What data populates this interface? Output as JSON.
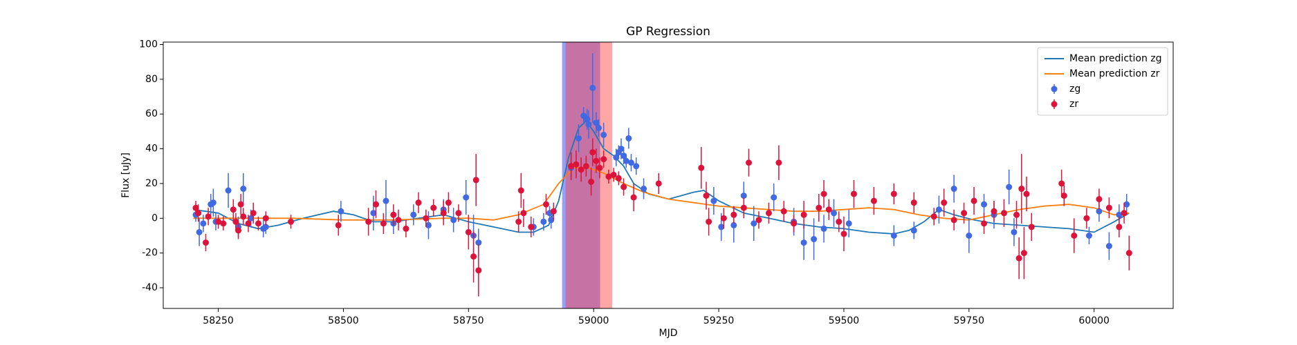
{
  "chart_data": {
    "type": "errorbar",
    "title": "GP Regression",
    "x_label": "MJD",
    "y_label": "Flux [uJy]",
    "xlim": [
      58140,
      60158
    ],
    "ylim": [
      -51.9,
      101.4
    ],
    "xticks": [
      58250,
      58500,
      58750,
      59000,
      59250,
      59500,
      59750,
      60000
    ],
    "yticks": [
      -40,
      -20,
      0,
      20,
      40,
      60,
      80,
      100
    ],
    "legend": "upper right",
    "spans": [
      {
        "x0": 58937,
        "x1": 59013,
        "color": "#3f51f5",
        "alpha": 0.55
      },
      {
        "x0": 58944,
        "x1": 59037,
        "color": "#ff3b3b",
        "alpha": 0.45
      }
    ],
    "series": [
      {
        "name": "Mean prediction zg",
        "type": "line",
        "color": "#1f77b4",
        "x": [
          58200,
          58250,
          58290,
          58330,
          58370,
          58420,
          58480,
          58520,
          58560,
          58600,
          58650,
          58700,
          58750,
          58800,
          58850,
          58880,
          58910,
          58930,
          58950,
          58970,
          58985,
          59000,
          59020,
          59040,
          59060,
          59080,
          59110,
          59150,
          59200,
          59220,
          59250,
          59300,
          59350,
          59400,
          59450,
          59500,
          59550,
          59600,
          59630,
          59660,
          59690,
          59720,
          59760,
          59800,
          59850,
          59900,
          59950,
          60000,
          60040,
          60070
        ],
        "values": [
          5,
          3,
          -3,
          -6,
          -4,
          0,
          4,
          2,
          -2,
          -2,
          0,
          2,
          -2,
          -5,
          -8,
          -8,
          -4,
          10,
          35,
          52,
          56,
          50,
          40,
          36,
          30,
          20,
          14,
          11,
          15,
          16,
          10,
          3,
          0,
          -3,
          -5,
          -6,
          -8,
          -9,
          -7,
          -2,
          5,
          2,
          -1,
          -3,
          -4,
          -5,
          -6,
          -8,
          -2,
          3
        ]
      },
      {
        "name": "Mean prediction zr",
        "type": "line",
        "color": "#ff7f0e",
        "x": [
          58200,
          58300,
          58400,
          58500,
          58600,
          58700,
          58750,
          58800,
          58850,
          58900,
          58930,
          58960,
          58990,
          59020,
          59060,
          59100,
          59150,
          59200,
          59250,
          59300,
          59350,
          59400,
          59450,
          59500,
          59550,
          59600,
          59650,
          59700,
          59750,
          59800,
          59850,
          59900,
          59950,
          60000,
          60040,
          60070
        ],
        "values": [
          0,
          0,
          0,
          -1,
          -1,
          0,
          0,
          -1,
          2,
          8,
          20,
          29,
          29,
          26,
          20,
          15,
          11,
          9,
          7,
          6,
          5,
          4,
          4,
          5,
          6,
          5,
          2,
          0,
          -1,
          2,
          5,
          7,
          8,
          6,
          2,
          3
        ]
      },
      {
        "name": "zg",
        "type": "errorbar",
        "color": "#4169e1",
        "x": [
          58205,
          58212,
          58220,
          58235,
          58240,
          58245,
          58270,
          58290,
          58300,
          58315,
          58340,
          58345,
          58495,
          58560,
          58585,
          58600,
          58640,
          58670,
          58700,
          58720,
          58745,
          58760,
          58770,
          58880,
          58900,
          58912,
          58915,
          58955,
          58970,
          58980,
          58987,
          58990,
          58998,
          59005,
          59010,
          59020,
          59045,
          59050,
          59055,
          59060,
          59065,
          59070,
          59075,
          59085,
          59100,
          59240,
          59255,
          59280,
          59300,
          59320,
          59360,
          59400,
          59420,
          59440,
          59460,
          59480,
          59510,
          59600,
          59640,
          59690,
          59720,
          59750,
          59780,
          59800,
          59830,
          59840,
          59990,
          60010,
          60030,
          60050,
          60065
        ],
        "values": [
          2,
          -8,
          -3,
          8,
          9,
          -2,
          16,
          -5,
          17,
          0,
          -6,
          -5,
          4,
          3,
          10,
          -3,
          2,
          -4,
          5,
          -1,
          12,
          -10,
          -14,
          -5,
          -2,
          3,
          -1,
          29,
          46,
          59,
          57,
          54,
          75,
          55,
          52,
          48,
          35,
          38,
          40,
          36,
          33,
          46,
          32,
          30,
          17,
          10,
          -5,
          -4,
          13,
          -3,
          12,
          -2,
          -14,
          -12,
          -6,
          3,
          -3,
          -10,
          -7,
          5,
          17,
          -10,
          8,
          2,
          18,
          -8,
          -10,
          4,
          -16,
          2,
          8
        ],
        "errors": [
          4,
          8,
          5,
          6,
          8,
          5,
          10,
          6,
          9,
          5,
          5,
          4,
          6,
          10,
          12,
          6,
          6,
          8,
          6,
          7,
          10,
          12,
          8,
          5,
          5,
          4,
          5,
          7,
          8,
          5,
          6,
          8,
          20,
          6,
          5,
          7,
          5,
          4,
          6,
          5,
          4,
          6,
          5,
          5,
          6,
          8,
          8,
          10,
          8,
          10,
          8,
          8,
          10,
          12,
          8,
          8,
          8,
          6,
          5,
          8,
          8,
          10,
          6,
          8,
          10,
          8,
          5,
          6,
          8,
          6,
          6
        ]
      },
      {
        "name": "zr",
        "type": "errorbar",
        "color": "#dc143c",
        "x": [
          58205,
          58210,
          58225,
          58230,
          58250,
          58260,
          58280,
          58285,
          58290,
          58295,
          58300,
          58310,
          58320,
          58330,
          58345,
          58395,
          58490,
          58550,
          58565,
          58580,
          58600,
          58610,
          58625,
          58650,
          58665,
          58680,
          58700,
          58710,
          58730,
          58750,
          58760,
          58765,
          58770,
          58850,
          58855,
          58860,
          58875,
          58905,
          58920,
          58955,
          58965,
          58975,
          58985,
          58995,
          58998,
          59005,
          59012,
          59020,
          59030,
          59040,
          59050,
          59060,
          59080,
          59130,
          59215,
          59225,
          59230,
          59260,
          59280,
          59300,
          59310,
          59330,
          59350,
          59370,
          59380,
          59400,
          59420,
          59450,
          59460,
          59470,
          59490,
          59500,
          59520,
          59560,
          59600,
          59640,
          59680,
          59700,
          59720,
          59740,
          59760,
          59780,
          59800,
          59820,
          59845,
          59850,
          59855,
          59860,
          59865,
          59875,
          59935,
          59940,
          59960,
          59985,
          60010,
          60030,
          60050,
          60060,
          60070
        ],
        "values": [
          6,
          3,
          -14,
          1,
          -2,
          -3,
          5,
          -2,
          -7,
          8,
          1,
          -3,
          3,
          -3,
          0,
          -2,
          -4,
          -2,
          8,
          -3,
          2,
          -1,
          -6,
          9,
          0,
          6,
          3,
          9,
          3,
          -8,
          -22,
          22,
          -30,
          -2,
          16,
          3,
          -5,
          8,
          4,
          30,
          31,
          28,
          30,
          21,
          38,
          33,
          29,
          34,
          24,
          25,
          23,
          18,
          12,
          20,
          29,
          13,
          -2,
          0,
          2,
          6,
          32,
          -1,
          3,
          32,
          4,
          -3,
          2,
          6,
          14,
          5,
          -2,
          -9,
          14,
          10,
          14,
          9,
          1,
          9,
          -1,
          3,
          10,
          -3,
          4,
          3,
          2,
          -23,
          17,
          -20,
          14,
          -5,
          20,
          13,
          -10,
          0,
          11,
          6,
          -5,
          3,
          -20
        ],
        "errors": [
          4,
          5,
          5,
          5,
          4,
          4,
          6,
          5,
          5,
          6,
          5,
          5,
          6,
          4,
          4,
          4,
          6,
          8,
          8,
          6,
          6,
          6,
          5,
          6,
          5,
          5,
          7,
          6,
          5,
          10,
          15,
          15,
          15,
          6,
          10,
          8,
          6,
          6,
          5,
          8,
          8,
          7,
          6,
          8,
          8,
          7,
          6,
          5,
          4,
          4,
          4,
          5,
          8,
          6,
          12,
          8,
          8,
          6,
          5,
          6,
          8,
          5,
          6,
          10,
          6,
          5,
          8,
          8,
          8,
          6,
          6,
          10,
          8,
          8,
          6,
          6,
          5,
          8,
          6,
          6,
          8,
          6,
          6,
          8,
          8,
          12,
          20,
          15,
          10,
          8,
          8,
          6,
          10,
          6,
          6,
          6,
          6,
          6,
          10
        ]
      }
    ]
  }
}
